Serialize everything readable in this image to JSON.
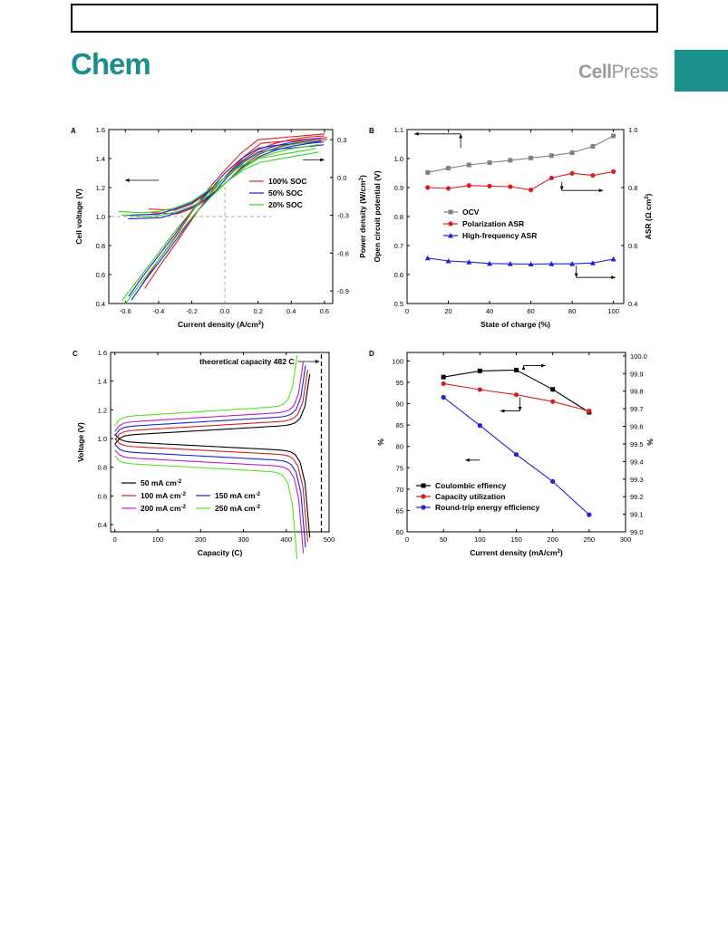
{
  "page": {
    "journal": "Chem",
    "publisher_left": "Cell",
    "publisher_right": "Press",
    "accent_color": "#1a8f8b"
  },
  "chart_data": [
    {
      "panel": "A",
      "type": "line",
      "xlabel": "Current density (A/cm2)",
      "ylabel_left": "Cell voltage (V)",
      "ylabel_right": "Power density (W/cm2)",
      "xlim": [
        -0.7,
        0.65
      ],
      "ylim_left": [
        0.4,
        1.6
      ],
      "ylim_right": [
        -1.0,
        0.38
      ],
      "xticks": [
        -0.6,
        -0.4,
        -0.2,
        0.0,
        0.2,
        0.4,
        0.6
      ],
      "yticks_left": [
        0.4,
        0.6,
        0.8,
        1.0,
        1.2,
        1.4,
        1.6
      ],
      "yticks_right": [
        -0.9,
        -0.6,
        -0.3,
        0.0,
        0.3
      ],
      "series": [
        {
          "name": "100% SOC",
          "color": "#d62020",
          "voltage_x": [
            -0.5,
            -0.4,
            -0.3,
            -0.2,
            -0.1,
            0.0,
            0.1,
            0.2,
            0.3,
            0.4,
            0.5,
            0.6
          ],
          "voltage_y": [
            0.53,
            0.7,
            0.86,
            1.03,
            1.19,
            1.32,
            1.44,
            1.53,
            1.54,
            1.55,
            1.56,
            1.57
          ],
          "power_x": [
            -0.46,
            -0.3,
            -0.2,
            -0.1,
            0.0,
            0.1,
            0.2,
            0.3,
            0.4,
            0.5,
            0.6
          ],
          "power_y": [
            -0.25,
            -0.26,
            -0.21,
            -0.12,
            0.0,
            0.13,
            0.22,
            0.27,
            0.3,
            0.32,
            0.33
          ]
        },
        {
          "name": "50% SOC",
          "color": "#2020d6",
          "voltage_x": [
            -0.58,
            -0.5,
            -0.4,
            -0.3,
            -0.2,
            -0.1,
            0.0,
            0.1,
            0.2,
            0.3,
            0.4,
            0.5,
            0.58
          ],
          "voltage_y": [
            0.45,
            0.58,
            0.73,
            0.88,
            1.04,
            1.17,
            1.3,
            1.4,
            1.47,
            1.49,
            1.5,
            1.51,
            1.52
          ],
          "power_x": [
            -0.6,
            -0.4,
            -0.3,
            -0.2,
            -0.1,
            0.0,
            0.1,
            0.2,
            0.3,
            0.4,
            0.5,
            0.58
          ],
          "power_y": [
            -0.3,
            -0.29,
            -0.25,
            -0.2,
            -0.11,
            0.0,
            0.12,
            0.2,
            0.25,
            0.28,
            0.3,
            0.31
          ]
        },
        {
          "name": "20% SOC",
          "color": "#3cd620",
          "voltage_x": [
            -0.62,
            -0.5,
            -0.4,
            -0.3,
            -0.2,
            -0.1,
            0.0,
            0.1,
            0.2,
            0.3,
            0.4,
            0.5,
            0.55
          ],
          "voltage_y": [
            0.42,
            0.6,
            0.75,
            0.9,
            1.04,
            1.16,
            1.27,
            1.35,
            1.4,
            1.42,
            1.44,
            1.46,
            1.47
          ],
          "power_x": [
            -0.64,
            -0.5,
            -0.4,
            -0.3,
            -0.2,
            -0.1,
            0.0,
            0.1,
            0.2,
            0.3,
            0.4,
            0.5,
            0.55
          ],
          "power_y": [
            -0.27,
            -0.28,
            -0.27,
            -0.24,
            -0.19,
            -0.1,
            0.0,
            0.11,
            0.19,
            0.23,
            0.26,
            0.28,
            0.29
          ]
        }
      ],
      "reference_lines": {
        "voltage": 1.0,
        "current": 0.0
      }
    },
    {
      "panel": "B",
      "type": "line",
      "xlabel": "State of charge (%)",
      "ylabel_left": "Open circuit potential (V)",
      "ylabel_right": "ASR (Ω cm2)",
      "xlim": [
        0,
        105
      ],
      "ylim_left": [
        0.5,
        1.1
      ],
      "ylim_right": [
        0.4,
        1.0
      ],
      "xticks": [
        0,
        20,
        40,
        60,
        80,
        100
      ],
      "yticks_left": [
        0.5,
        0.6,
        0.7,
        0.8,
        0.9,
        1.0,
        1.1
      ],
      "yticks_right": [
        0.4,
        0.6,
        0.8,
        1.0
      ],
      "x": [
        10,
        20,
        30,
        40,
        50,
        60,
        70,
        80,
        90,
        100
      ],
      "series": [
        {
          "name": "OCV",
          "color": "#808080",
          "marker": "square",
          "axis": "left",
          "values": [
            0.952,
            0.967,
            0.978,
            0.986,
            0.994,
            1.002,
            1.01,
            1.02,
            1.042,
            1.078
          ]
        },
        {
          "name": "Polarization ASR",
          "color": "#d62020",
          "marker": "circle",
          "axis": "right",
          "values": [
            0.8,
            0.797,
            0.807,
            0.805,
            0.803,
            0.792,
            0.833,
            0.849,
            0.842,
            0.855
          ]
        },
        {
          "name": "High-frequency ASR",
          "color": "#2020d6",
          "marker": "triangle",
          "axis": "right",
          "values": [
            0.557,
            0.547,
            0.543,
            0.538,
            0.537,
            0.536,
            0.537,
            0.537,
            0.54,
            0.553
          ]
        }
      ]
    },
    {
      "panel": "C",
      "type": "line",
      "xlabel": "Capacity (C)",
      "ylabel": "Voltage (V)",
      "xlim": [
        -10,
        500
      ],
      "ylim": [
        0.35,
        1.6
      ],
      "xticks": [
        0,
        100,
        200,
        300,
        400,
        500
      ],
      "yticks": [
        0.4,
        0.6,
        0.8,
        1.0,
        1.2,
        1.4,
        1.6
      ],
      "annotation": "theoretical capacity 482 C",
      "theoretical_capacity": 482,
      "series": [
        {
          "name": "50 mA cm-2",
          "color": "#000000",
          "capacity": 455,
          "charge_v": 1.02,
          "discharge_v": 0.98
        },
        {
          "name": "100 mA cm-2",
          "color": "#d62020",
          "capacity": 450,
          "charge_v": 1.05,
          "discharge_v": 0.95
        },
        {
          "name": "150 mA cm-2",
          "color": "#2020d6",
          "capacity": 445,
          "charge_v": 1.08,
          "discharge_v": 0.91
        },
        {
          "name": "200 mA cm-2",
          "color": "#c020c0",
          "capacity": 440,
          "charge_v": 1.11,
          "discharge_v": 0.87
        },
        {
          "name": "250 mA cm-2",
          "color": "#5ce020",
          "capacity": 425,
          "charge_v": 1.15,
          "discharge_v": 0.83
        }
      ]
    },
    {
      "panel": "D",
      "type": "line",
      "xlabel": "Current density (mA/cm2)",
      "ylabel_left": "%",
      "ylabel_right": "%",
      "xlim": [
        0,
        300
      ],
      "ylim_left": [
        60,
        102
      ],
      "ylim_right": [
        99.0,
        100.02
      ],
      "xticks": [
        0,
        50,
        100,
        150,
        200,
        250,
        300
      ],
      "yticks_left": [
        60,
        65,
        70,
        75,
        80,
        85,
        90,
        95,
        100
      ],
      "yticks_right": [
        99.0,
        99.1,
        99.2,
        99.3,
        99.4,
        99.5,
        99.6,
        99.7,
        99.8,
        99.9,
        100.0
      ],
      "x": [
        50,
        100,
        150,
        200,
        250
      ],
      "series": [
        {
          "name": "Coulombic effiency",
          "color": "#000000",
          "marker": "square",
          "axis": "right",
          "values": [
            99.88,
            99.915,
            99.92,
            99.81,
            99.68
          ]
        },
        {
          "name": "Capacity utilization",
          "color": "#d62020",
          "marker": "circle",
          "axis": "left",
          "values": [
            94.7,
            93.3,
            92.1,
            90.5,
            88.3
          ]
        },
        {
          "name": "Round-trip energy efficiency",
          "color": "#2020d6",
          "marker": "circle",
          "axis": "left",
          "values": [
            91.5,
            84.9,
            78.1,
            71.8,
            64.0
          ]
        }
      ]
    }
  ]
}
